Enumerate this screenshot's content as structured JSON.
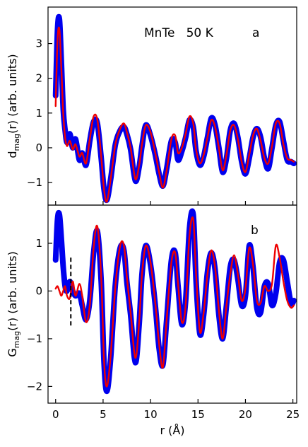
{
  "chart_data": [
    {
      "type": "line",
      "panel_label": "a",
      "annotation": "MnTe   50 K",
      "ylabel_main": "d",
      "ylabel_sub": "mag",
      "ylabel_rest": "(r) (arb. units)",
      "xlim": [
        -0.8,
        25.4
      ],
      "ylim": [
        -1.65,
        4.05
      ],
      "yticks": [
        -1,
        0,
        1,
        2,
        3
      ],
      "ytick_labels": [
        "−1",
        "0",
        "1",
        "2",
        "3"
      ],
      "colors": {
        "data": "#0000ee",
        "fit": "#ee0000"
      },
      "series": [
        {
          "role": "data",
          "x": [
            0.0,
            0.2,
            0.4,
            0.6,
            0.8,
            1.0,
            1.2,
            1.5,
            1.8,
            2.1,
            2.5,
            2.8,
            3.2,
            3.6,
            4.0,
            4.4,
            4.8,
            5.1,
            5.4,
            5.8,
            6.3,
            6.8,
            7.2,
            7.5,
            7.9,
            8.4,
            8.8,
            9.1,
            9.5,
            10.0,
            10.5,
            10.9,
            11.3,
            11.7,
            12.2,
            12.6,
            12.9,
            13.3,
            13.7,
            14.1,
            14.5,
            14.8,
            15.2,
            15.6,
            16.0,
            16.4,
            16.8,
            17.2,
            17.6,
            18.0,
            18.4,
            18.8,
            19.2,
            19.6,
            20.0,
            20.4,
            20.8,
            21.2,
            21.6,
            22.0,
            22.4,
            22.8,
            23.2,
            23.6,
            24.0,
            24.4,
            24.8,
            25.1
          ],
          "y": [
            1.5,
            3.4,
            3.7,
            2.5,
            1.1,
            0.5,
            0.15,
            0.4,
            0.0,
            0.25,
            -0.35,
            -0.15,
            -0.5,
            0.2,
            0.75,
            0.7,
            -0.3,
            -1.2,
            -1.5,
            -0.9,
            0.1,
            0.5,
            0.6,
            0.4,
            -0.05,
            -0.95,
            -0.55,
            0.05,
            0.65,
            0.35,
            -0.2,
            -0.75,
            -1.1,
            -0.6,
            0.2,
            0.15,
            -0.35,
            -0.1,
            0.3,
            0.8,
            0.6,
            -0.1,
            -0.5,
            -0.25,
            0.3,
            0.85,
            0.65,
            0.0,
            -0.7,
            -0.3,
            0.5,
            0.7,
            0.3,
            -0.4,
            -0.75,
            -0.3,
            0.3,
            0.55,
            0.3,
            -0.3,
            -0.6,
            0.0,
            0.65,
            0.75,
            0.2,
            -0.35,
            -0.4,
            -0.45
          ]
        },
        {
          "role": "fit",
          "x": [
            0.0,
            0.2,
            0.4,
            0.6,
            0.8,
            1.0,
            1.2,
            1.5,
            1.8,
            2.1,
            2.5,
            2.8,
            3.2,
            3.6,
            4.0,
            4.4,
            4.8,
            5.1,
            5.4,
            5.8,
            6.3,
            6.8,
            7.2,
            7.5,
            7.9,
            8.4,
            8.8,
            9.1,
            9.5,
            10.0,
            10.5,
            10.9,
            11.3,
            11.7,
            12.2,
            12.6,
            12.9,
            13.3,
            13.7,
            14.1,
            14.5,
            14.8,
            15.2,
            15.6,
            16.0,
            16.4,
            16.8,
            17.2,
            17.6,
            18.0,
            18.4,
            18.8,
            19.2,
            19.6,
            20.0,
            20.4,
            20.8,
            21.2,
            21.6,
            22.0,
            22.4,
            22.8,
            23.2,
            23.6,
            24.0,
            24.4,
            24.8,
            25.1
          ],
          "y": [
            1.2,
            3.1,
            3.4,
            2.3,
            1.0,
            0.3,
            0.05,
            0.2,
            -0.05,
            0.1,
            -0.25,
            -0.15,
            -0.45,
            0.25,
            0.9,
            0.8,
            -0.25,
            -1.2,
            -1.55,
            -0.9,
            0.1,
            0.55,
            0.7,
            0.45,
            0.0,
            -0.9,
            -0.5,
            0.1,
            0.65,
            0.45,
            -0.15,
            -0.7,
            -1.15,
            -0.65,
            0.25,
            0.35,
            -0.15,
            0.0,
            0.4,
            0.9,
            0.7,
            -0.05,
            -0.45,
            -0.2,
            0.3,
            0.8,
            0.6,
            0.0,
            -0.65,
            -0.2,
            0.5,
            0.65,
            0.25,
            -0.4,
            -0.7,
            -0.2,
            0.35,
            0.55,
            0.2,
            -0.3,
            -0.45,
            0.05,
            0.7,
            0.7,
            0.1,
            -0.3,
            -0.35,
            -0.4
          ]
        }
      ]
    },
    {
      "type": "line",
      "panel_label": "b",
      "ylabel_main": "G",
      "ylabel_sub": "mag",
      "ylabel_rest": "(r) (arb. units)",
      "xlabel": "r (Å)",
      "xlim": [
        -0.8,
        25.4
      ],
      "ylim": [
        -2.35,
        1.8
      ],
      "xticks": [
        0,
        5,
        10,
        15,
        20,
        25
      ],
      "xtick_labels": [
        "0",
        "5",
        "10",
        "15",
        "20",
        "25"
      ],
      "yticks": [
        -2,
        -1,
        0,
        1
      ],
      "ytick_labels": [
        "−2",
        "−1",
        "0",
        "1"
      ],
      "cutoff_x": 1.6,
      "cutoff_y": [
        -0.75,
        0.7
      ],
      "colors": {
        "data": "#0000ee",
        "fit": "#ee0000"
      },
      "series": [
        {
          "role": "data",
          "x": [
            0.0,
            0.2,
            0.4,
            0.6,
            0.8,
            1.0,
            1.2,
            1.5,
            1.8,
            2.1,
            2.5,
            2.8,
            3.2,
            3.6,
            4.0,
            4.4,
            4.8,
            5.1,
            5.4,
            5.8,
            6.3,
            6.8,
            7.2,
            7.5,
            7.9,
            8.4,
            8.8,
            9.1,
            9.5,
            10.0,
            10.5,
            10.9,
            11.3,
            11.7,
            12.2,
            12.6,
            12.9,
            13.3,
            13.7,
            14.1,
            14.5,
            14.8,
            15.2,
            15.6,
            16.0,
            16.4,
            16.8,
            17.2,
            17.6,
            18.0,
            18.4,
            18.8,
            19.2,
            19.6,
            20.0,
            20.4,
            20.8,
            21.2,
            21.6,
            22.0,
            22.4,
            22.8,
            23.2,
            23.6,
            24.0,
            24.4,
            24.8,
            25.1
          ],
          "y": [
            0.65,
            1.5,
            1.6,
            1.1,
            0.5,
            0.1,
            0.0,
            0.2,
            0.0,
            -0.1,
            -0.05,
            -0.3,
            -0.6,
            -0.2,
            0.8,
            1.25,
            0.2,
            -1.5,
            -2.1,
            -1.4,
            0.15,
            0.9,
            0.85,
            0.2,
            -0.5,
            -1.5,
            -0.7,
            0.35,
            0.95,
            0.55,
            -0.3,
            -1.2,
            -1.55,
            -0.6,
            0.65,
            0.8,
            0.1,
            -0.7,
            -0.2,
            1.3,
            1.6,
            0.2,
            -0.9,
            -0.5,
            0.4,
            0.8,
            0.45,
            -0.5,
            -1.0,
            -0.3,
            0.5,
            0.65,
            0.25,
            -0.3,
            -0.1,
            0.95,
            0.5,
            -0.35,
            -0.45,
            0.1,
            0.15,
            -0.3,
            -0.05,
            0.6,
            0.65,
            0.2,
            -0.25,
            -0.2
          ]
        },
        {
          "role": "fit",
          "x": [
            0.0,
            0.2,
            0.4,
            0.6,
            0.8,
            1.0,
            1.2,
            1.5,
            1.8,
            2.1,
            2.5,
            2.8,
            3.2,
            3.6,
            4.0,
            4.4,
            4.8,
            5.1,
            5.4,
            5.8,
            6.3,
            6.8,
            7.2,
            7.5,
            7.9,
            8.4,
            8.8,
            9.1,
            9.5,
            10.0,
            10.5,
            10.9,
            11.3,
            11.7,
            12.2,
            12.6,
            12.9,
            13.3,
            13.7,
            14.1,
            14.5,
            14.8,
            15.2,
            15.6,
            16.0,
            16.4,
            16.8,
            17.2,
            17.6,
            18.0,
            18.4,
            18.8,
            19.2,
            19.6,
            20.0,
            20.4,
            20.8,
            21.2,
            21.6,
            22.0,
            22.4,
            22.8,
            23.2,
            23.6,
            24.0,
            24.4,
            24.8,
            25.1
          ],
          "y": [
            0.05,
            0.1,
            0.0,
            -0.1,
            0.0,
            0.1,
            -0.1,
            -0.15,
            0.2,
            -0.1,
            0.15,
            -0.1,
            -0.65,
            -0.3,
            0.9,
            1.35,
            0.3,
            -1.45,
            -2.0,
            -1.35,
            0.1,
            0.95,
            0.95,
            0.3,
            -0.45,
            -1.4,
            -0.65,
            0.35,
            0.95,
            0.6,
            -0.25,
            -1.1,
            -1.6,
            -0.6,
            0.6,
            0.8,
            0.15,
            -0.65,
            -0.3,
            1.15,
            1.5,
            0.35,
            -0.85,
            -0.45,
            0.35,
            0.85,
            0.5,
            -0.4,
            -1.0,
            -0.3,
            0.35,
            0.75,
            0.35,
            -0.2,
            0.05,
            0.9,
            0.55,
            -0.2,
            -0.25,
            0.1,
            0.0,
            0.15,
            0.95,
            0.7,
            0.2,
            -0.2,
            -0.35,
            -0.3
          ]
        }
      ]
    }
  ]
}
